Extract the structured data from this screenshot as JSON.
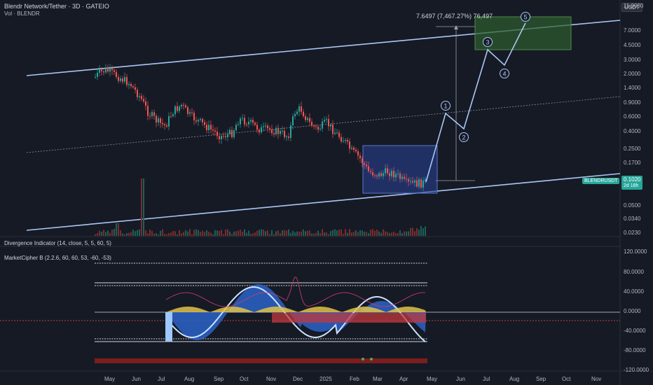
{
  "header": {
    "title": "Blendr Network/Tether · 3D · GATEIO",
    "vol_label": "Vol · BLENDR",
    "currency": "USDT"
  },
  "price_axis": {
    "ticks": [
      "11.0000",
      "7.0000",
      "4.5000",
      "3.0000",
      "2.0000",
      "1.4000",
      "0.9000",
      "0.6000",
      "0.4000",
      "0.2500",
      "0.1700",
      "0.1020",
      "0.0500",
      "0.0340",
      "0.0230"
    ]
  },
  "last_price": {
    "symbol": "BLENDRUSDT",
    "value": "0.1020",
    "countdown": "2d 18h"
  },
  "projection": {
    "measure_label": "7.6497 (7,467.27%) 76,497",
    "waves": [
      "1",
      "2",
      "3",
      "4",
      "5"
    ]
  },
  "indicators": {
    "divergence": "Divergence Indicator (14, close, 5, 5, 60, 5)",
    "cipher": "MarketCipher B (2.2.6, 60, 60, 53, -60, -53)",
    "osc_ticks": [
      "120.0000",
      "80.0000",
      "40.0000",
      "0.0000",
      "-40.0000",
      "-80.0000",
      "-120.0000"
    ]
  },
  "time_axis": {
    "labels": [
      "May",
      "Jun",
      "Jul",
      "Aug",
      "Sep",
      "Oct",
      "Nov",
      "Dec",
      "2025",
      "Feb",
      "Mar",
      "Apr",
      "May",
      "Jun",
      "Jul",
      "Aug",
      "Sep",
      "Oct",
      "Nov"
    ]
  },
  "colors": {
    "background": "#161a25",
    "up": "#26a69a",
    "down": "#ef5350",
    "channel": "#a9c7f5",
    "box_blue": "#2a3f8f",
    "box_green": "#2e5e2e",
    "last_price": "#26a69a"
  },
  "chart_data": {
    "type": "line",
    "title": "Blendr Network/Tether · 3D · GATEIO",
    "xlabel": "",
    "ylabel": "USDT",
    "scale": "log",
    "ylim": [
      0.023,
      11.0
    ],
    "x_range": [
      "2024-05",
      "2025-11"
    ],
    "series": [
      {
        "values_description": "",
        "x": [
          "2024-05-01",
          "2024-05-20",
          "2024-06-15",
          "2024-07-10",
          "2024-08-01",
          "2024-08-25",
          "2024-09-20",
          "2024-10-15",
          "2024-11-10",
          "2024-11-30",
          "2024-12-20",
          "2025-01-10",
          "2025-02-01",
          "2025-02-20",
          "2025-03-15",
          "2025-04-10",
          "2025-04-25"
        ],
        "y": [
          1.9,
          2.1,
          1.3,
          0.55,
          0.75,
          0.55,
          0.35,
          0.45,
          0.4,
          0.9,
          0.45,
          0.42,
          0.22,
          0.12,
          0.1,
          0.08,
          0.102
        ]
      },
      {
        "x": [
          "2025-04-25",
          "2025-05-10",
          "2025-05-25",
          "2025-06-25",
          "2025-07-20",
          "2025-08-10"
        ],
        "y": [
          0.102,
          0.7,
          0.42,
          5.0,
          2.6,
          7.65
        ]
      }
    ],
    "wave_labels": [
      "1",
      "2",
      "3",
      "4",
      "5"
    ],
    "osc_ylim": [
      -120,
      120
    ]
  }
}
